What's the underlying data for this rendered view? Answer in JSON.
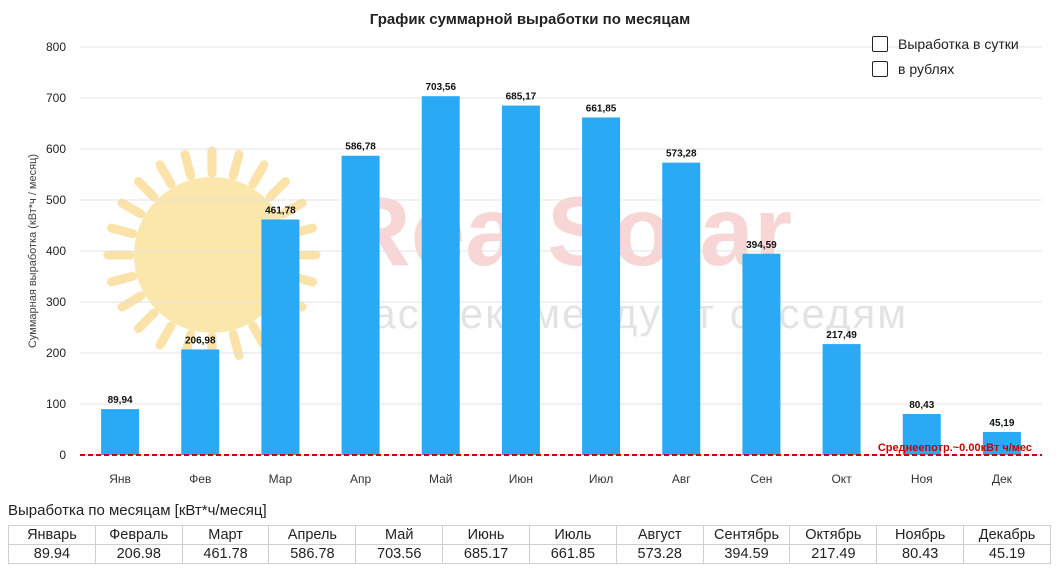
{
  "chart_data": {
    "type": "bar",
    "title": "График суммарной выработки по месяцам",
    "ylabel": "Суммарная выработка (кВт*ч / месяц)",
    "xlabel": "",
    "categories": [
      "Янв",
      "Фев",
      "Мар",
      "Апр",
      "Май",
      "Июн",
      "Июл",
      "Авг",
      "Сен",
      "Окт",
      "Ноя",
      "Дек"
    ],
    "values": [
      89.94,
      206.98,
      461.78,
      586.78,
      703.56,
      685.17,
      661.85,
      573.28,
      394.59,
      217.49,
      80.43,
      45.19
    ],
    "data_labels": [
      "89,94",
      "206,98",
      "461,78",
      "586,78",
      "703,56",
      "685,17",
      "661,85",
      "573,28",
      "394,59",
      "217,49",
      "80,43",
      "45,19"
    ],
    "ylim": [
      0,
      800
    ],
    "yticks": [
      0,
      100,
      200,
      300,
      400,
      500,
      600,
      700,
      800
    ],
    "grid": true,
    "bar_color": "#2aaaf5",
    "reference_line": {
      "value": 0.0,
      "label": "Среднеепотр.~0.00кВт ч/мес",
      "color": "#cc0000",
      "style": "dashed"
    },
    "legend_position": "top-right"
  },
  "watermark": {
    "brand": "RealSolar",
    "slogan": "Нас рекомендуют соседям"
  },
  "legend": {
    "items": [
      {
        "label": "Выработка в сутки",
        "checked": false
      },
      {
        "label": "в рублях",
        "checked": false
      }
    ]
  },
  "table": {
    "title": "Выработка по месяцам [кВт*ч/месяц]",
    "headers": [
      "Январь",
      "Февраль",
      "Март",
      "Апрель",
      "Май",
      "Июнь",
      "Июль",
      "Август",
      "Сентябрь",
      "Октябрь",
      "Ноябрь",
      "Декабрь"
    ],
    "values": [
      "89.94",
      "206.98",
      "461.78",
      "586.78",
      "703.56",
      "685.17",
      "661.85",
      "573.28",
      "394.59",
      "217.49",
      "80.43",
      "45.19"
    ]
  }
}
